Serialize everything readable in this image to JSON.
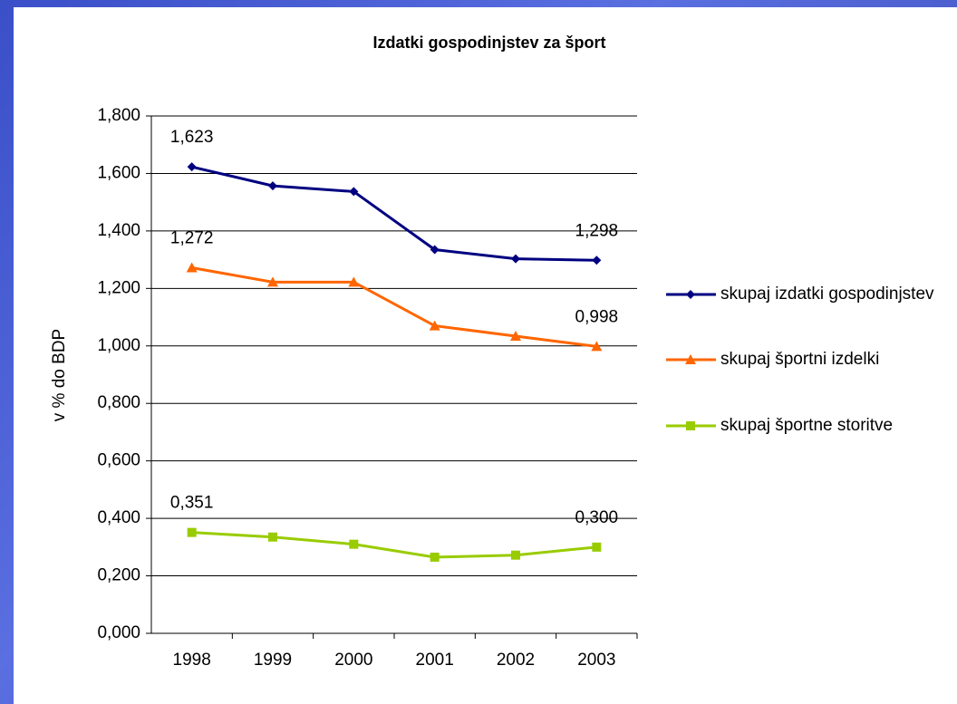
{
  "chart_data": {
    "type": "line",
    "title": "Izdatki gospodinjstev za šport",
    "ylabel": "v % do BDP",
    "categories": [
      "1998",
      "1999",
      "2000",
      "2001",
      "2002",
      "2003"
    ],
    "series": [
      {
        "name": "skupaj izdatki gospodinjstev",
        "color": "#000080",
        "marker": "diamond",
        "values": [
          1.623,
          1.557,
          1.537,
          1.335,
          1.303,
          1.298
        ],
        "value_labels": [
          "1,623",
          null,
          null,
          null,
          null,
          "1,298"
        ]
      },
      {
        "name": "skupaj športni izdelki",
        "color": "#ff6600",
        "marker": "triangle",
        "values": [
          1.272,
          1.222,
          1.222,
          1.07,
          1.034,
          0.998
        ],
        "value_labels": [
          "1,272",
          null,
          null,
          null,
          null,
          "0,998"
        ]
      },
      {
        "name": "skupaj športne storitve",
        "color": "#99cc00",
        "marker": "square",
        "values": [
          0.351,
          0.335,
          0.31,
          0.265,
          0.272,
          0.3
        ],
        "value_labels": [
          "0,351",
          null,
          null,
          null,
          null,
          "0,300"
        ]
      }
    ],
    "ylim": [
      0,
      1.8
    ],
    "yticks": [
      {
        "value": 0,
        "label": "0,000"
      },
      {
        "value": 0.2,
        "label": "0,200"
      },
      {
        "value": 0.4,
        "label": "0,400"
      },
      {
        "value": 0.6,
        "label": "0,600"
      },
      {
        "value": 0.8,
        "label": "0,800"
      },
      {
        "value": 1.0,
        "label": "1,000"
      },
      {
        "value": 1.2,
        "label": "1,200"
      },
      {
        "value": 1.4,
        "label": "1,400"
      },
      {
        "value": 1.6,
        "label": "1,600"
      },
      {
        "value": 1.8,
        "label": "1,800"
      }
    ],
    "grid": true,
    "legend": "right"
  }
}
